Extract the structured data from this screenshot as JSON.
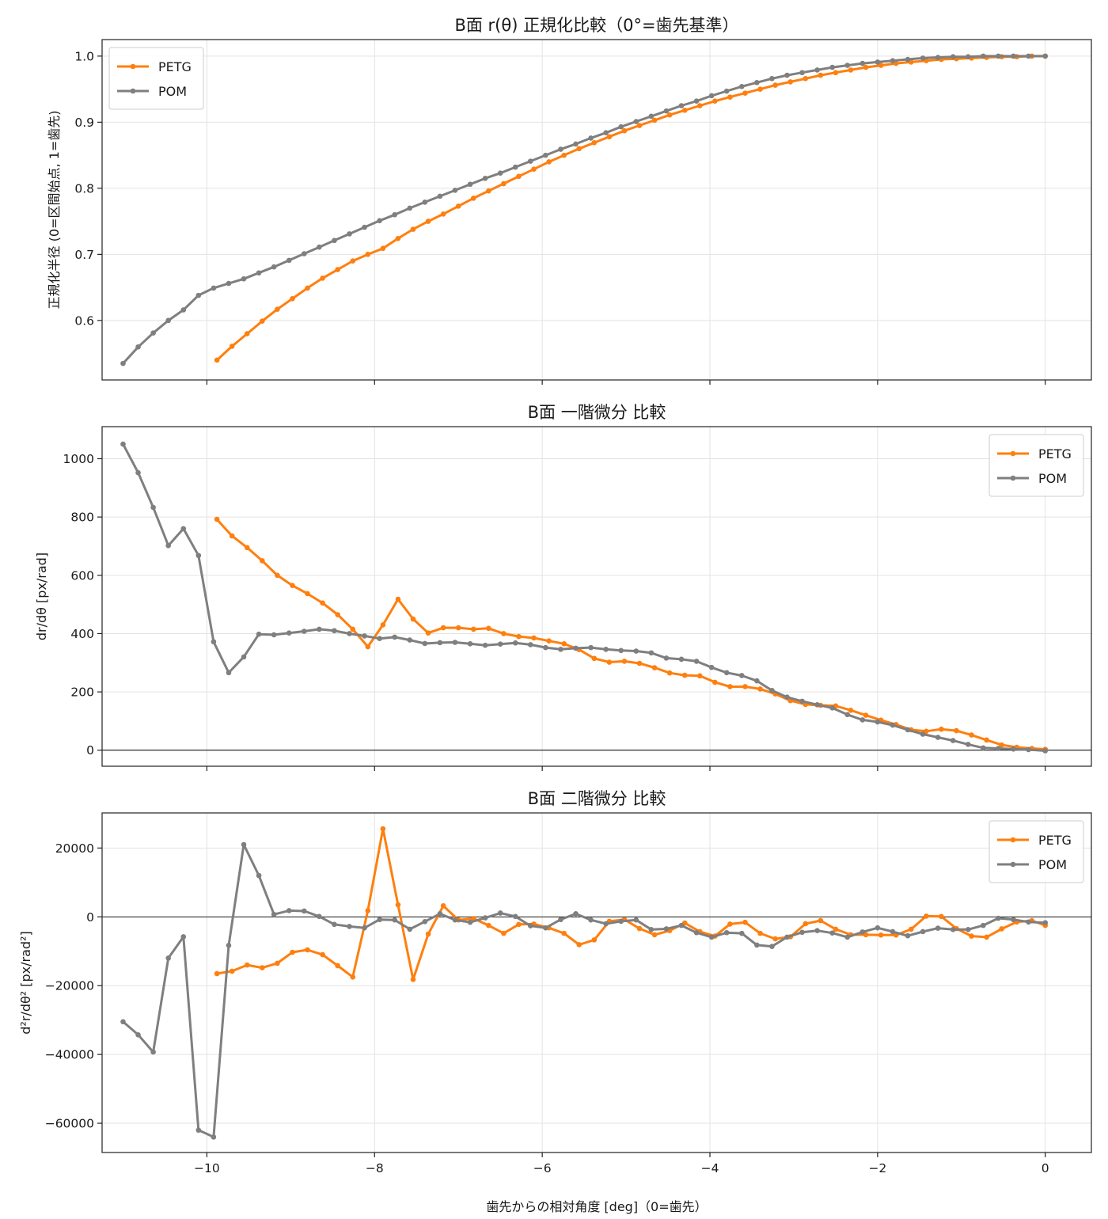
{
  "figure": {
    "xlabel": "歯先からの相対角度 [deg]（0=歯先）"
  },
  "colors": {
    "PETG": "#ff7f0e",
    "POM": "#7f7f7f"
  },
  "chart_data": [
    {
      "type": "line",
      "title": "B面 r(θ) 正規化比較（0°=歯先基準）",
      "ylabel": "正規化半径 (0=区間始点, 1=歯先)",
      "xlim": [
        -11.25,
        0.55
      ],
      "ylim": [
        0.51,
        1.025
      ],
      "xticks": [
        -10,
        -8,
        -6,
        -4,
        -2,
        0
      ],
      "yticks": [
        0.6,
        0.7,
        0.8,
        0.9,
        1.0
      ],
      "ytick_labels": [
        "0.6",
        "0.7",
        "0.8",
        "0.9",
        "1.0"
      ],
      "zero_line": false,
      "legend": "upper-left",
      "series": [
        {
          "name": "PETG",
          "x": [
            -9.88,
            -9.7,
            -9.52,
            -9.34,
            -9.16,
            -8.98,
            -8.8,
            -8.62,
            -8.44,
            -8.26,
            -8.08,
            -7.9,
            -7.72,
            -7.54,
            -7.36,
            -7.18,
            -7.0,
            -6.82,
            -6.64,
            -6.46,
            -6.28,
            -6.1,
            -5.92,
            -5.74,
            -5.56,
            -5.38,
            -5.2,
            -5.02,
            -4.84,
            -4.66,
            -4.48,
            -4.3,
            -4.12,
            -3.94,
            -3.76,
            -3.58,
            -3.4,
            -3.22,
            -3.04,
            -2.86,
            -2.68,
            -2.5,
            -2.32,
            -2.14,
            -1.96,
            -1.78,
            -1.6,
            -1.42,
            -1.24,
            -1.06,
            -0.88,
            -0.7,
            -0.52,
            -0.34,
            -0.16,
            0.0
          ],
          "y": [
            0.54,
            0.561,
            0.58,
            0.599,
            0.617,
            0.633,
            0.649,
            0.664,
            0.677,
            0.69,
            0.7,
            0.709,
            0.724,
            0.738,
            0.75,
            0.761,
            0.773,
            0.785,
            0.796,
            0.807,
            0.818,
            0.829,
            0.84,
            0.85,
            0.86,
            0.869,
            0.878,
            0.887,
            0.895,
            0.903,
            0.911,
            0.918,
            0.925,
            0.932,
            0.938,
            0.944,
            0.95,
            0.956,
            0.961,
            0.966,
            0.971,
            0.975,
            0.979,
            0.983,
            0.986,
            0.989,
            0.991,
            0.993,
            0.995,
            0.996,
            0.997,
            0.998,
            0.999,
            0.999,
            1.0,
            1.0
          ]
        },
        {
          "name": "POM",
          "x": [
            -11.0,
            -10.82,
            -10.64,
            -10.46,
            -10.28,
            -10.1,
            -9.92,
            -9.74,
            -9.56,
            -9.38,
            -9.2,
            -9.02,
            -8.84,
            -8.66,
            -8.48,
            -8.3,
            -8.12,
            -7.94,
            -7.76,
            -7.58,
            -7.4,
            -7.22,
            -7.04,
            -6.86,
            -6.68,
            -6.5,
            -6.32,
            -6.14,
            -5.96,
            -5.78,
            -5.6,
            -5.42,
            -5.24,
            -5.06,
            -4.88,
            -4.7,
            -4.52,
            -4.34,
            -4.16,
            -3.98,
            -3.8,
            -3.62,
            -3.44,
            -3.26,
            -3.08,
            -2.9,
            -2.72,
            -2.54,
            -2.36,
            -2.18,
            -2.0,
            -1.82,
            -1.64,
            -1.46,
            -1.28,
            -1.1,
            -0.92,
            -0.74,
            -0.56,
            -0.38,
            -0.2,
            0.0
          ],
          "y": [
            0.535,
            0.56,
            0.581,
            0.6,
            0.616,
            0.638,
            0.649,
            0.656,
            0.663,
            0.672,
            0.681,
            0.691,
            0.701,
            0.711,
            0.721,
            0.731,
            0.741,
            0.751,
            0.76,
            0.77,
            0.779,
            0.788,
            0.797,
            0.806,
            0.815,
            0.823,
            0.832,
            0.841,
            0.85,
            0.859,
            0.867,
            0.876,
            0.884,
            0.893,
            0.901,
            0.909,
            0.917,
            0.925,
            0.932,
            0.94,
            0.947,
            0.954,
            0.96,
            0.966,
            0.971,
            0.975,
            0.979,
            0.983,
            0.986,
            0.989,
            0.991,
            0.993,
            0.995,
            0.997,
            0.998,
            0.999,
            0.999,
            1.0,
            1.0,
            1.0,
            1.0,
            1.0
          ]
        }
      ]
    },
    {
      "type": "line",
      "title": "B面 一階微分 比較",
      "ylabel": "dr/dθ [px/rad]",
      "xlim": [
        -11.25,
        0.55
      ],
      "ylim": [
        -55,
        1110
      ],
      "xticks": [
        -10,
        -8,
        -6,
        -4,
        -2,
        0
      ],
      "yticks": [
        0,
        200,
        400,
        600,
        800,
        1000
      ],
      "ytick_labels": [
        "0",
        "200",
        "400",
        "600",
        "800",
        "1000"
      ],
      "zero_line": true,
      "legend": "upper-right",
      "series": [
        {
          "name": "PETG",
          "x": [
            -9.88,
            -9.7,
            -9.52,
            -9.34,
            -9.16,
            -8.98,
            -8.8,
            -8.62,
            -8.44,
            -8.26,
            -8.08,
            -7.9,
            -7.72,
            -7.54,
            -7.36,
            -7.18,
            -7.0,
            -6.82,
            -6.64,
            -6.46,
            -6.28,
            -6.1,
            -5.92,
            -5.74,
            -5.56,
            -5.38,
            -5.2,
            -5.02,
            -4.84,
            -4.66,
            -4.48,
            -4.3,
            -4.12,
            -3.94,
            -3.76,
            -3.58,
            -3.4,
            -3.22,
            -3.04,
            -2.86,
            -2.68,
            -2.5,
            -2.32,
            -2.14,
            -1.96,
            -1.78,
            -1.6,
            -1.42,
            -1.24,
            -1.06,
            -0.88,
            -0.7,
            -0.52,
            -0.34,
            -0.16,
            0.0
          ],
          "y": [
            792,
            735,
            695,
            650,
            600,
            565,
            537,
            505,
            465,
            415,
            355,
            430,
            518,
            450,
            402,
            420,
            420,
            415,
            418,
            400,
            390,
            385,
            375,
            365,
            345,
            315,
            302,
            305,
            298,
            283,
            265,
            257,
            255,
            233,
            218,
            218,
            210,
            193,
            170,
            157,
            154,
            152,
            137,
            120,
            103,
            88,
            70,
            65,
            72,
            67,
            52,
            35,
            18,
            10,
            6,
            3
          ]
        },
        {
          "name": "POM",
          "x": [
            -11.0,
            -10.82,
            -10.64,
            -10.46,
            -10.28,
            -10.1,
            -9.92,
            -9.74,
            -9.56,
            -9.38,
            -9.2,
            -9.02,
            -8.84,
            -8.66,
            -8.48,
            -8.3,
            -8.12,
            -7.94,
            -7.76,
            -7.58,
            -7.4,
            -7.22,
            -7.04,
            -6.86,
            -6.68,
            -6.5,
            -6.32,
            -6.14,
            -5.96,
            -5.78,
            -5.6,
            -5.42,
            -5.24,
            -5.06,
            -4.88,
            -4.7,
            -4.52,
            -4.34,
            -4.16,
            -3.98,
            -3.8,
            -3.62,
            -3.44,
            -3.26,
            -3.08,
            -2.9,
            -2.72,
            -2.54,
            -2.36,
            -2.18,
            -2.0,
            -1.82,
            -1.64,
            -1.46,
            -1.28,
            -1.1,
            -0.92,
            -0.74,
            -0.56,
            -0.38,
            -0.2,
            0.0
          ],
          "y": [
            1050,
            952,
            833,
            702,
            760,
            668,
            372,
            266,
            320,
            398,
            396,
            402,
            408,
            415,
            410,
            400,
            392,
            383,
            388,
            378,
            366,
            369,
            370,
            365,
            360,
            364,
            368,
            362,
            352,
            346,
            350,
            352,
            346,
            342,
            340,
            334,
            316,
            312,
            305,
            284,
            266,
            256,
            238,
            205,
            182,
            168,
            156,
            145,
            122,
            104,
            97,
            86,
            70,
            55,
            44,
            33,
            20,
            8,
            6,
            4,
            2,
            -2
          ]
        }
      ]
    },
    {
      "type": "line",
      "title": "B面 二階微分 比較",
      "ylabel": "d²r/dθ² [px/rad²]",
      "xlim": [
        -11.25,
        0.55
      ],
      "ylim": [
        -68500,
        30200
      ],
      "xticks": [
        -10,
        -8,
        -6,
        -4,
        -2,
        0
      ],
      "xtick_labels": [
        "−10",
        "−8",
        "−6",
        "−4",
        "−2",
        "0"
      ],
      "yticks": [
        -60000,
        -40000,
        -20000,
        0,
        20000
      ],
      "ytick_labels": [
        "−60000",
        "−40000",
        "−20000",
        "0",
        "20000"
      ],
      "zero_line": true,
      "legend": "upper-right",
      "series": [
        {
          "name": "PETG",
          "x": [
            -9.88,
            -9.7,
            -9.52,
            -9.34,
            -9.16,
            -8.98,
            -8.8,
            -8.62,
            -8.44,
            -8.26,
            -8.08,
            -7.9,
            -7.72,
            -7.54,
            -7.36,
            -7.18,
            -7.0,
            -6.82,
            -6.64,
            -6.46,
            -6.28,
            -6.1,
            -5.92,
            -5.74,
            -5.56,
            -5.38,
            -5.2,
            -5.02,
            -4.84,
            -4.66,
            -4.48,
            -4.3,
            -4.12,
            -3.94,
            -3.76,
            -3.58,
            -3.4,
            -3.22,
            -3.04,
            -2.86,
            -2.68,
            -2.5,
            -2.32,
            -2.14,
            -1.96,
            -1.78,
            -1.6,
            -1.42,
            -1.24,
            -1.06,
            -0.88,
            -0.7,
            -0.52,
            -0.34,
            -0.16,
            0.0
          ],
          "y": [
            -16500,
            -15800,
            -14000,
            -14800,
            -13500,
            -10300,
            -9600,
            -11000,
            -14200,
            -17500,
            1800,
            25600,
            3500,
            -18200,
            -5000,
            3200,
            -900,
            -500,
            -2500,
            -4800,
            -2200,
            -2100,
            -3200,
            -4800,
            -8100,
            -6700,
            -1300,
            -800,
            -3400,
            -5200,
            -4000,
            -1800,
            -4300,
            -5600,
            -2100,
            -1600,
            -4800,
            -6400,
            -5800,
            -2000,
            -1100,
            -3600,
            -5200,
            -5200,
            -5300,
            -5300,
            -3600,
            200,
            100,
            -3400,
            -5600,
            -5900,
            -3500,
            -1500,
            -1100,
            -2500
          ]
        },
        {
          "name": "POM",
          "x": [
            -11.0,
            -10.82,
            -10.64,
            -10.46,
            -10.28,
            -10.1,
            -9.92,
            -9.74,
            -9.56,
            -9.38,
            -9.2,
            -9.02,
            -8.84,
            -8.66,
            -8.48,
            -8.3,
            -8.12,
            -7.94,
            -7.76,
            -7.58,
            -7.4,
            -7.22,
            -7.04,
            -6.86,
            -6.68,
            -6.5,
            -6.32,
            -6.14,
            -5.96,
            -5.78,
            -5.6,
            -5.42,
            -5.24,
            -5.06,
            -4.88,
            -4.7,
            -4.52,
            -4.34,
            -4.16,
            -3.98,
            -3.8,
            -3.62,
            -3.44,
            -3.26,
            -3.08,
            -2.9,
            -2.72,
            -2.54,
            -2.36,
            -2.18,
            -2.0,
            -1.82,
            -1.64,
            -1.46,
            -1.28,
            -1.1,
            -0.92,
            -0.74,
            -0.56,
            -0.38,
            -0.2,
            0.0
          ],
          "y": [
            -30500,
            -34300,
            -39300,
            -12000,
            -5800,
            -62000,
            -64000,
            -8300,
            21000,
            12000,
            700,
            1800,
            1700,
            100,
            -2200,
            -2800,
            -3200,
            -800,
            -900,
            -3600,
            -1400,
            900,
            -900,
            -1600,
            -300,
            1100,
            100,
            -2600,
            -3200,
            -800,
            900,
            -900,
            -2000,
            -1300,
            -900,
            -3700,
            -3500,
            -2500,
            -4600,
            -5900,
            -4600,
            -4800,
            -8200,
            -8600,
            -5900,
            -4500,
            -4000,
            -4700,
            -5900,
            -4400,
            -3200,
            -4300,
            -5500,
            -4300,
            -3300,
            -3700,
            -3700,
            -2500,
            -400,
            -800,
            -1500,
            -1700
          ]
        }
      ]
    }
  ]
}
